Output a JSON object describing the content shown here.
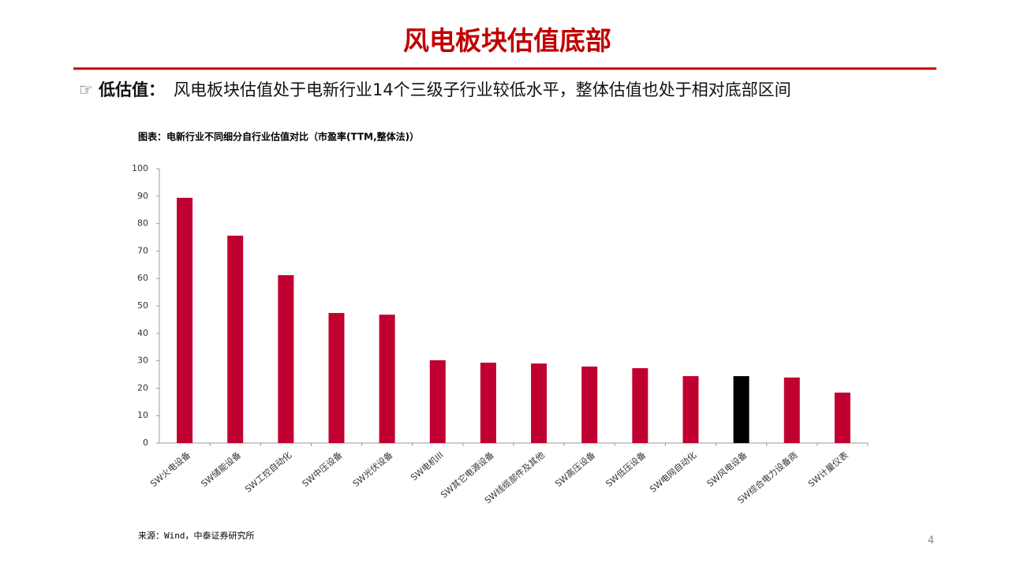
{
  "slide_title": "风电板块估值底部",
  "bullet": {
    "icon": "☞",
    "label": "低估值：",
    "text": "风电板块估值处于电新行业14个三级子行业较低水平，整体估值也处于相对底部区间"
  },
  "chart_data": {
    "type": "bar",
    "title": "图表：电新行业不同细分自行业估值对比（市盈率(TTM,整体法)）",
    "categories": [
      "SW火电设备",
      "SW储能设备",
      "SW工控自动化",
      "SW中压设备",
      "SW光伏设备",
      "SW电机III",
      "SW其它电源设备",
      "SW线缆部件及其他",
      "SW高压设备",
      "SW低压设备",
      "SW电网自动化",
      "SW风电设备",
      "SW综合电力设备商",
      "SW计量仪表"
    ],
    "values": [
      89.4,
      75.6,
      61.2,
      47.4,
      46.8,
      30.2,
      29.3,
      29.0,
      27.9,
      27.3,
      24.4,
      24.4,
      23.9,
      18.4
    ],
    "colors": [
      "#c00030",
      "#c00030",
      "#c00030",
      "#c00030",
      "#c00030",
      "#c00030",
      "#c00030",
      "#c00030",
      "#c00030",
      "#c00030",
      "#c00030",
      "#000000",
      "#c00030",
      "#c00030"
    ],
    "ylim": [
      0,
      100
    ],
    "yticks": [
      0,
      10,
      20,
      30,
      40,
      50,
      60,
      70,
      80,
      90,
      100
    ],
    "grid": false
  },
  "source": "来源：Wind，中泰证券研究所",
  "page_number": "4"
}
